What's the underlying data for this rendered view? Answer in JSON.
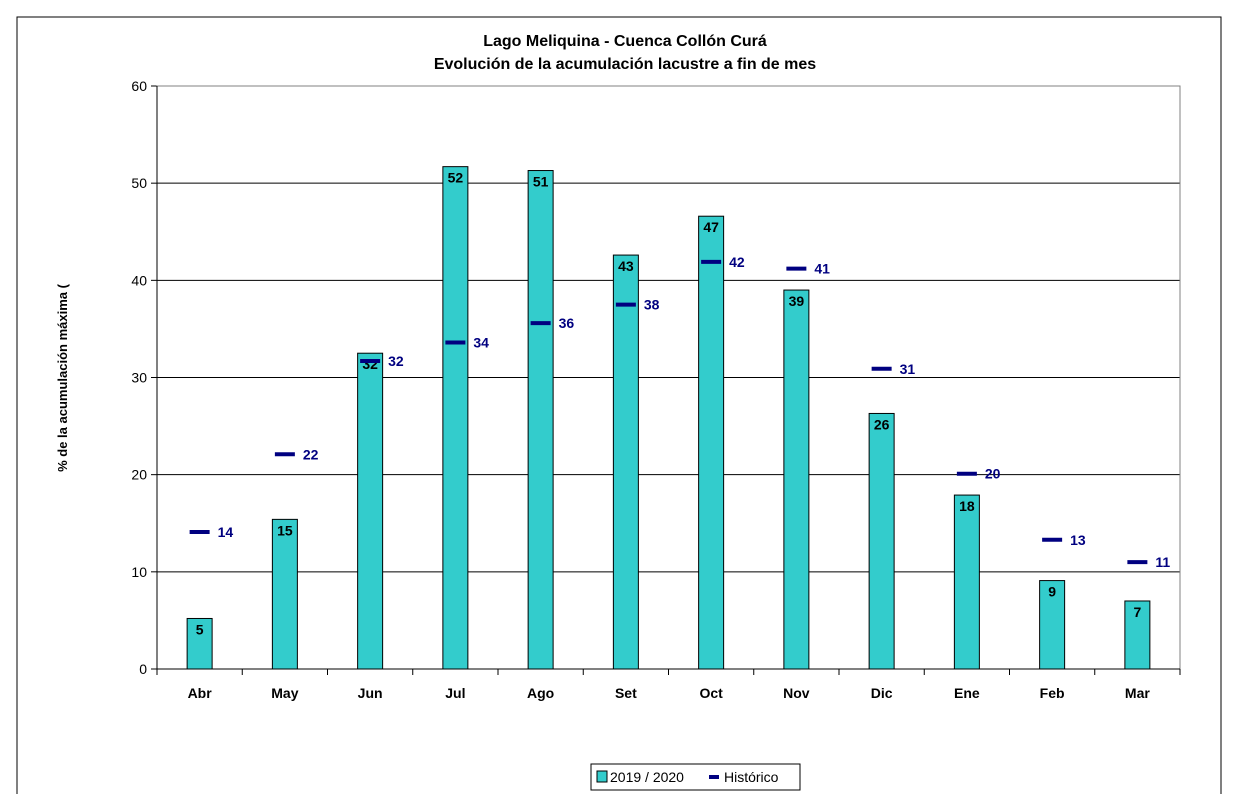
{
  "chart_data": {
    "type": "bar",
    "title": "Lago Meliquina - Cuenca Collón Curá",
    "subtitle": "Evolución de la acumulación lacustre a fin de mes",
    "xlabel": "",
    "ylabel": "% de la acumulación máxima (",
    "ylim": [
      0,
      60
    ],
    "yticks": [
      0,
      10,
      20,
      30,
      40,
      50,
      60
    ],
    "grid": true,
    "legend_position": "bottom-center",
    "categories": [
      "Abr",
      "May",
      "Jun",
      "Jul",
      "Ago",
      "Set",
      "Oct",
      "Nov",
      "Dic",
      "Ene",
      "Feb",
      "Mar"
    ],
    "series": [
      {
        "name": "2019 / 2020",
        "kind": "bar",
        "color": "#33CCCC",
        "values": [
          5.2,
          15.4,
          32.5,
          51.7,
          51.3,
          42.6,
          46.6,
          39.0,
          26.3,
          17.9,
          9.1,
          7.0
        ],
        "labels": [
          "5",
          "15",
          "32",
          "52",
          "51",
          "43",
          "47",
          "39",
          "26",
          "18",
          "9",
          "7"
        ]
      },
      {
        "name": "Histórico",
        "kind": "marker",
        "color": "#000080",
        "values": [
          14.1,
          22.1,
          31.7,
          33.6,
          35.6,
          37.5,
          41.9,
          41.2,
          30.9,
          20.1,
          13.3,
          11.0
        ],
        "labels": [
          "14",
          "22",
          "32",
          "34",
          "36",
          "38",
          "42",
          "41",
          "31",
          "20",
          "13",
          "11"
        ]
      }
    ]
  }
}
